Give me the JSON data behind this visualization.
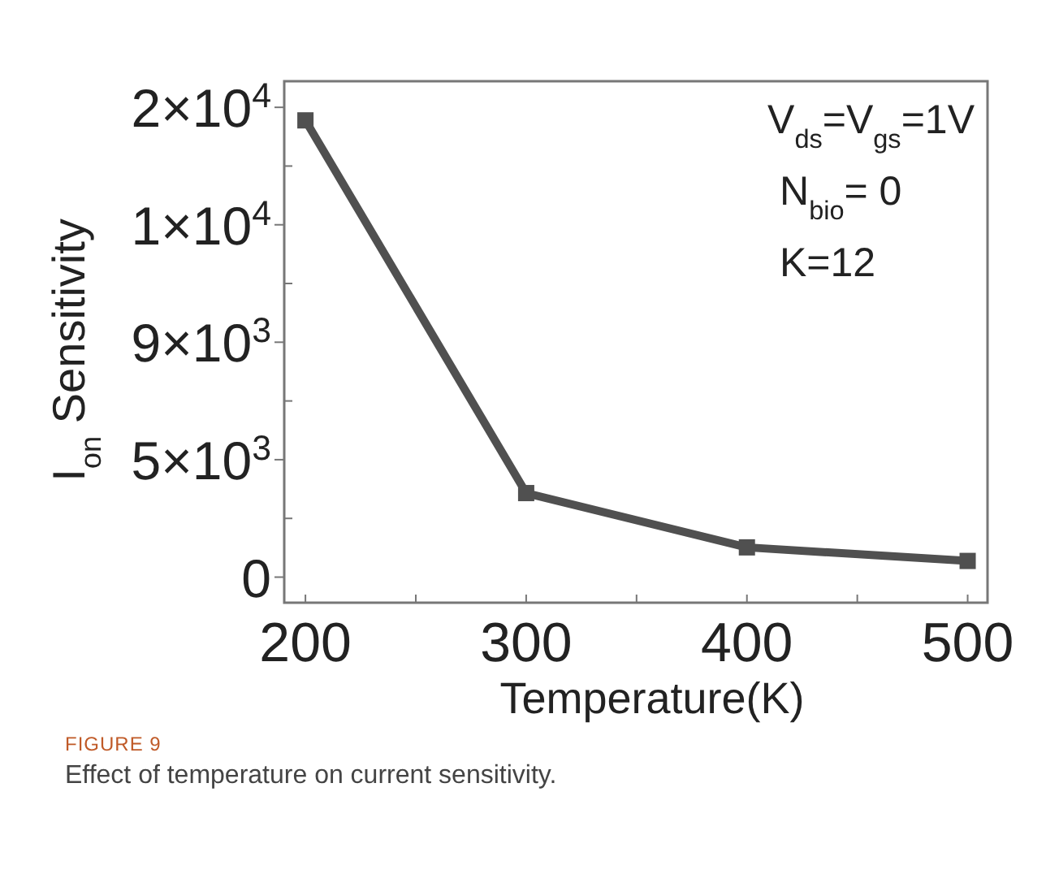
{
  "chart_data": {
    "type": "line",
    "xlabel": "Temperature(K)",
    "ylabel": "I$_{on}$ Sensitivity",
    "x": [
      200,
      300,
      400,
      500
    ],
    "series": [
      {
        "color": "#505050",
        "values": [
          17500,
          3220,
          1140,
          620
        ]
      }
    ],
    "xlim": [
      190.4,
      509
    ],
    "xticks": [
      200,
      {
        "value": 250,
        "label": null
      },
      300,
      {
        "value": 350,
        "label": null
      },
      400,
      {
        "value": 450,
        "label": null
      },
      500
    ],
    "ylim": [
      -980,
      19000
    ],
    "yticks": [
      {
        "value": 0,
        "label": "0"
      },
      {
        "value": 2250,
        "label": null
      },
      {
        "value": 4500,
        "label": "5×10$^{3}$"
      },
      {
        "value": 6750,
        "label": null
      },
      {
        "value": 9000,
        "label": "9×10$^{3}$"
      },
      {
        "value": 11250,
        "label": null
      },
      {
        "value": 13500,
        "label": "1×10$^{4}$"
      },
      {
        "value": 15750,
        "label": null
      },
      {
        "value": 18000,
        "label": "2×10$^{4}$"
      }
    ],
    "marker": "square",
    "line_style": "solid",
    "grid": false,
    "annotations": [
      "V$_{ds}$=V$_{gs}$=1V",
      "N$_{bio}$= 0",
      "K=12",
      "FIGURE 9",
      "Effect of temperature on current sensitivity."
    ]
  }
}
